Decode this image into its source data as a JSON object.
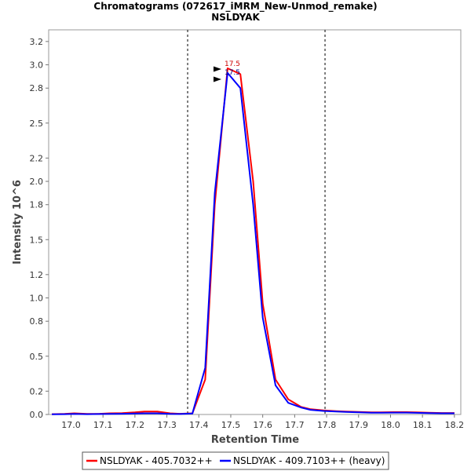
{
  "chart_data": {
    "type": "line",
    "title": "Chromatograms (072617_iMRM_New-Unmod_remake)",
    "subtitle": "NSLDYAK",
    "xlabel": "Retention Time",
    "ylabel": "Intensity 10^6",
    "xlim": [
      16.93,
      18.22
    ],
    "ylim": [
      0,
      3.3
    ],
    "xticks": [
      "17.0",
      "17.1",
      "17.2",
      "17.3",
      "17.4",
      "17.5",
      "17.6",
      "17.7",
      "17.8",
      "17.9",
      "18.0",
      "18.1",
      "18.2"
    ],
    "yticks": [
      "0.0",
      "0.2",
      "0.5",
      "0.8",
      "1.0",
      "1.2",
      "1.5",
      "1.8",
      "2.0",
      "2.2",
      "2.5",
      "2.8",
      "3.0",
      "3.2"
    ],
    "grid": false,
    "legend_position": "bottom",
    "boundaries": [
      17.365,
      17.795
    ],
    "series": [
      {
        "name": "NSLDYAK - 405.7032++",
        "color": "#ff0000",
        "x": [
          16.94,
          16.98,
          17.01,
          17.05,
          17.09,
          17.12,
          17.16,
          17.2,
          17.23,
          17.27,
          17.31,
          17.34,
          17.38,
          17.42,
          17.45,
          17.49,
          17.53,
          17.57,
          17.6,
          17.64,
          17.68,
          17.72,
          17.75,
          17.79,
          17.83,
          17.86,
          17.9,
          17.94,
          17.97,
          18.01,
          18.05,
          18.08,
          18.12,
          18.16,
          18.2
        ],
        "y": [
          0.003,
          0.005,
          0.01,
          0.005,
          0.006,
          0.01,
          0.012,
          0.018,
          0.025,
          0.025,
          0.01,
          0.006,
          0.01,
          0.3,
          1.8,
          2.97,
          2.92,
          2.0,
          0.95,
          0.3,
          0.13,
          0.065,
          0.045,
          0.035,
          0.028,
          0.025,
          0.022,
          0.018,
          0.018,
          0.02,
          0.02,
          0.018,
          0.015,
          0.013,
          0.013
        ]
      },
      {
        "name": "NSLDYAK - 409.7103++ (heavy)",
        "color": "#0000ff",
        "x": [
          16.94,
          16.98,
          17.01,
          17.05,
          17.09,
          17.12,
          17.16,
          17.2,
          17.23,
          17.27,
          17.31,
          17.34,
          17.38,
          17.42,
          17.45,
          17.49,
          17.53,
          17.57,
          17.6,
          17.64,
          17.68,
          17.72,
          17.75,
          17.79,
          17.83,
          17.86,
          17.9,
          17.94,
          17.97,
          18.01,
          18.05,
          18.08,
          18.12,
          18.16,
          18.2
        ],
        "y": [
          0.002,
          0.003,
          0.005,
          0.003,
          0.004,
          0.005,
          0.006,
          0.008,
          0.01,
          0.01,
          0.005,
          0.004,
          0.008,
          0.4,
          1.9,
          2.93,
          2.8,
          1.8,
          0.83,
          0.25,
          0.1,
          0.06,
          0.04,
          0.03,
          0.025,
          0.022,
          0.018,
          0.015,
          0.015,
          0.016,
          0.016,
          0.014,
          0.012,
          0.01,
          0.01
        ]
      }
    ],
    "annotations": [
      {
        "text": "17.5",
        "x": 17.505,
        "y": 2.97,
        "color": "#cc0000"
      },
      {
        "text": "17.5",
        "x": 17.505,
        "y": 2.93,
        "color": "#000080"
      }
    ]
  }
}
